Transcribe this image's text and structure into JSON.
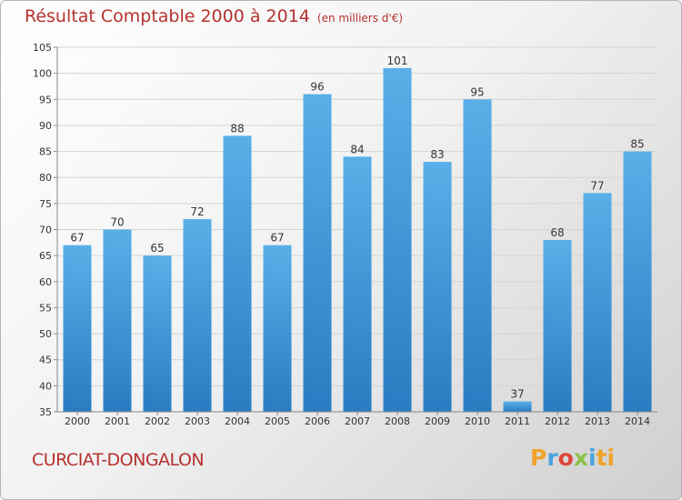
{
  "header": {
    "title": "Résultat Comptable 2000 à 2014",
    "unit": "(en milliers d'€)"
  },
  "footer": {
    "commune": "CURCIAT-DONGALON",
    "logo": [
      "P",
      "r",
      "o",
      "x",
      "i",
      "ti"
    ]
  },
  "chart_data": {
    "type": "bar",
    "title": "Résultat Comptable 2000 à 2014",
    "xlabel": "",
    "ylabel": "",
    "categories": [
      "2000",
      "2001",
      "2002",
      "2003",
      "2004",
      "2005",
      "2006",
      "2007",
      "2008",
      "2009",
      "2010",
      "2011",
      "2012",
      "2013",
      "2014"
    ],
    "values": [
      67,
      70,
      65,
      72,
      88,
      67,
      96,
      84,
      101,
      83,
      95,
      37,
      68,
      77,
      85
    ],
    "ylim": [
      35,
      105
    ],
    "yticks": [
      35,
      40,
      45,
      50,
      55,
      60,
      65,
      70,
      75,
      80,
      85,
      90,
      95,
      100,
      105
    ],
    "grid": true,
    "legend": "none",
    "bar_color_top": "#5aafe8",
    "bar_color_bottom": "#2a7cc2"
  }
}
